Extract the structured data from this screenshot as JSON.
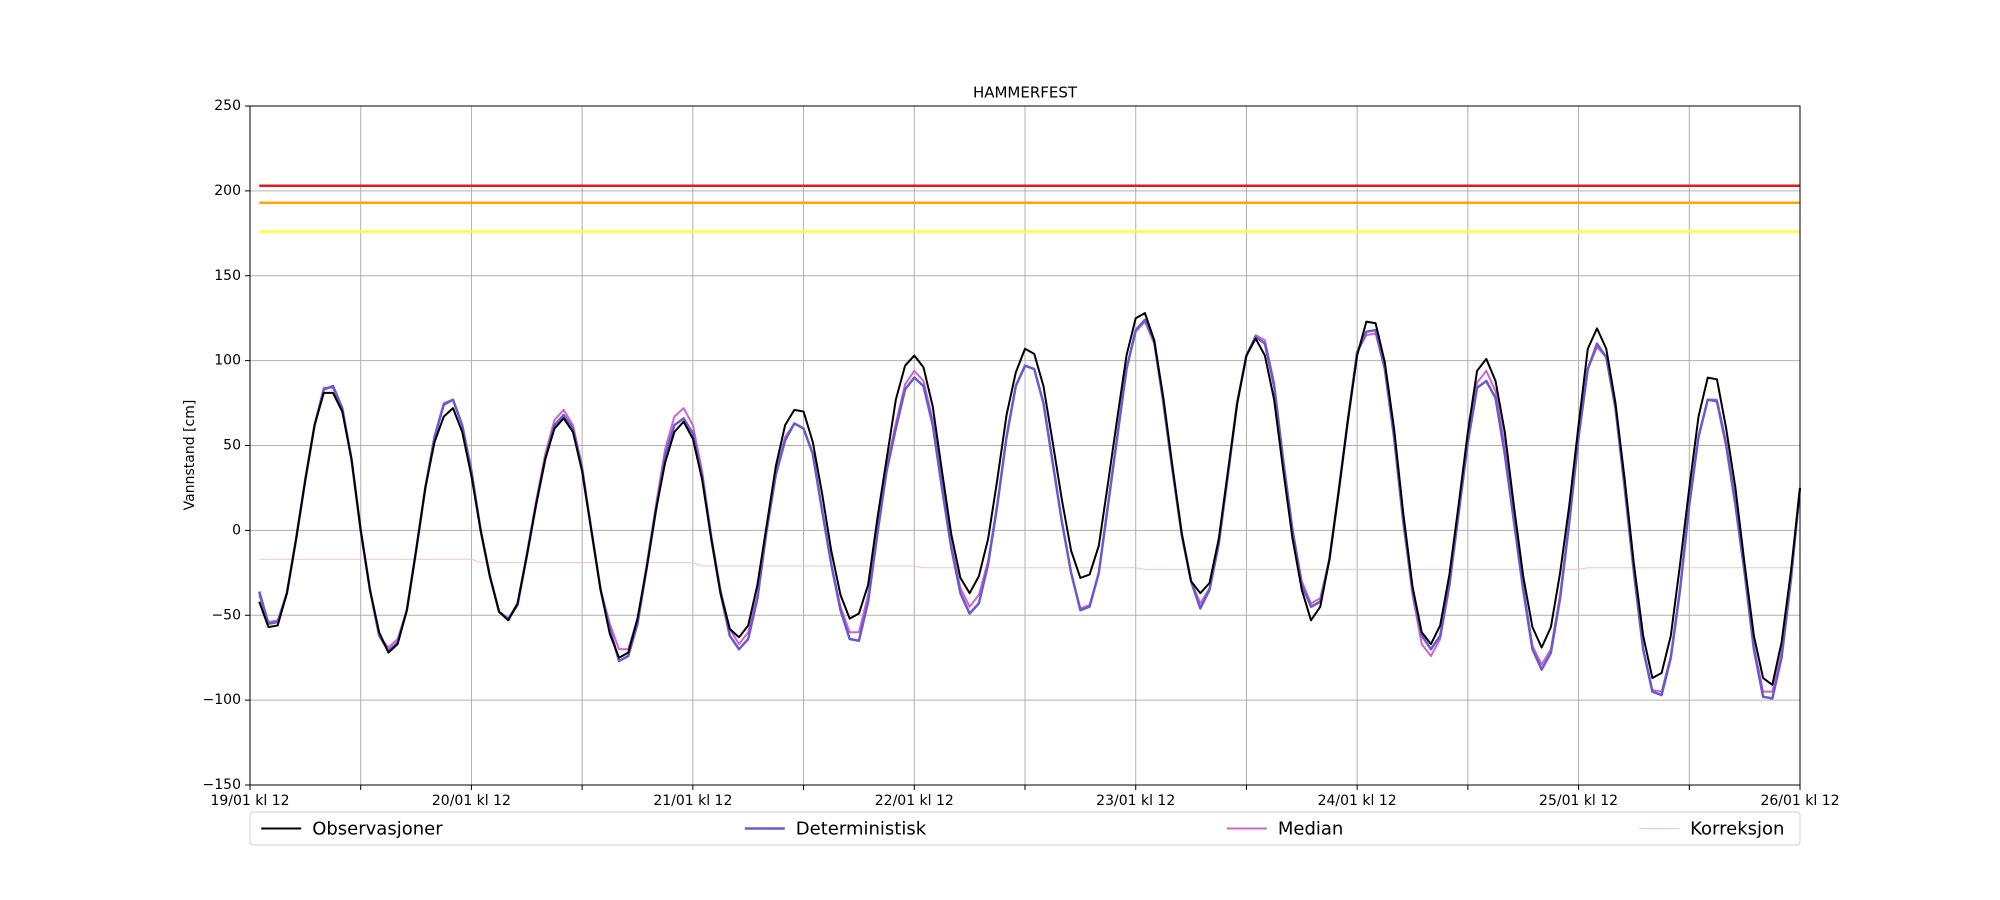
{
  "chart_data": {
    "type": "line",
    "title": "HAMMERFEST",
    "ylabel": "Vannstand [cm]",
    "xlim": [
      0,
      168
    ],
    "ylim": [
      -150,
      250
    ],
    "xticks": [
      {
        "value": 0,
        "label": "19/01 kl 12"
      },
      {
        "value": 24,
        "label": "20/01 kl 12"
      },
      {
        "value": 48,
        "label": "21/01 kl 12"
      },
      {
        "value": 72,
        "label": "22/01 kl 12"
      },
      {
        "value": 96,
        "label": "23/01 kl 12"
      },
      {
        "value": 120,
        "label": "24/01 kl 12"
      },
      {
        "value": 144,
        "label": "25/01 kl 12"
      },
      {
        "value": 168,
        "label": "26/01 kl 12"
      }
    ],
    "xminor": [
      12,
      36,
      60,
      84,
      108,
      132,
      156
    ],
    "yticks": [
      {
        "value": -150,
        "label": "−150"
      },
      {
        "value": -100,
        "label": "−100"
      },
      {
        "value": -50,
        "label": "−50"
      },
      0,
      50,
      100,
      150,
      200,
      250
    ],
    "grid": true,
    "hlines": [
      {
        "value": 203,
        "color": "#e31a1c"
      },
      {
        "value": 193,
        "color": "#ffa500"
      },
      {
        "value": 176,
        "color": "#ffff33"
      }
    ],
    "x": [
      1,
      2,
      3,
      4,
      5,
      6,
      7,
      8,
      9,
      10,
      11,
      12,
      13,
      14,
      15,
      16,
      17,
      18,
      19,
      20,
      21,
      22,
      23,
      24,
      25,
      26,
      27,
      28,
      29,
      30,
      31,
      32,
      33,
      34,
      35,
      36,
      37,
      38,
      39,
      40,
      41,
      42,
      43,
      44,
      45,
      46,
      47,
      48,
      49,
      50,
      51,
      52,
      53,
      54,
      55,
      56,
      57,
      58,
      59,
      60,
      61,
      62,
      63,
      64,
      65,
      66,
      67,
      68,
      69,
      70,
      71,
      72,
      73,
      74,
      75,
      76,
      77,
      78,
      79,
      80,
      81,
      82,
      83,
      84,
      85,
      86,
      87,
      88,
      89,
      90,
      91,
      92,
      93,
      94,
      95,
      96,
      97,
      98,
      99,
      100,
      101,
      102,
      103,
      104,
      105,
      106,
      107,
      108,
      109,
      110,
      111,
      112,
      113,
      114,
      115,
      116,
      117,
      118,
      119,
      120,
      121,
      122,
      123,
      124,
      125,
      126,
      127,
      128,
      129,
      130,
      131,
      132,
      133,
      134,
      135,
      136,
      137,
      138,
      139,
      140,
      141,
      142,
      143,
      144,
      145,
      146,
      147,
      148,
      149,
      150,
      151,
      152,
      153,
      154,
      155,
      156,
      157,
      158,
      159,
      160,
      161,
      162,
      163,
      164,
      165,
      166,
      167,
      168
    ],
    "series": [
      {
        "name": "Observasjoner",
        "color": "#000000",
        "width": 2,
        "values": [
          -42,
          -57,
          -56,
          -37,
          -5,
          30,
          62,
          81,
          81,
          70,
          42,
          0,
          -35,
          -60,
          -72,
          -67,
          -47,
          -12,
          25,
          52,
          67,
          72,
          58,
          32,
          0,
          -27,
          -48,
          -53,
          -43,
          -15,
          15,
          42,
          60,
          66,
          58,
          35,
          0,
          -35,
          -61,
          -75,
          -72,
          -52,
          -22,
          12,
          40,
          58,
          64,
          54,
          30,
          -5,
          -37,
          -58,
          -63,
          -56,
          -32,
          3,
          38,
          62,
          71,
          70,
          52,
          22,
          -12,
          -38,
          -52,
          -49,
          -32,
          7,
          42,
          77,
          97,
          103,
          96,
          73,
          35,
          -2,
          -28,
          -37,
          -27,
          -5,
          30,
          68,
          93,
          107,
          104,
          85,
          52,
          18,
          -12,
          -28,
          -26,
          -9,
          28,
          66,
          103,
          125,
          128,
          112,
          78,
          37,
          -2,
          -30,
          -37,
          -31,
          -5,
          35,
          75,
          103,
          113,
          103,
          77,
          35,
          -5,
          -35,
          -53,
          -45,
          -17,
          23,
          65,
          103,
          123,
          122,
          99,
          60,
          10,
          -33,
          -60,
          -67,
          -56,
          -26,
          15,
          58,
          94,
          101,
          88,
          58,
          14,
          -27,
          -57,
          -69,
          -57,
          -25,
          15,
          62,
          107,
          119,
          107,
          75,
          30,
          -20,
          -62,
          -87,
          -84,
          -62,
          -20,
          25,
          67,
          90,
          89,
          60,
          25,
          -20,
          -62,
          -87,
          -91,
          -66,
          -25,
          25
        ]
      },
      {
        "name": "Deterministisk",
        "color": "#6a5acd",
        "width": 2.5,
        "values": [
          -36,
          -55,
          -54,
          -37,
          -5,
          30,
          62,
          83,
          85,
          72,
          42,
          0,
          -35,
          -62,
          -71,
          -66,
          -47,
          -12,
          25,
          55,
          74,
          77,
          62,
          35,
          0,
          -27,
          -48,
          -52,
          -44,
          -15,
          15,
          42,
          62,
          68,
          60,
          35,
          0,
          -35,
          -58,
          -77,
          -74,
          -55,
          -22,
          12,
          44,
          62,
          66,
          57,
          32,
          -5,
          -37,
          -62,
          -70,
          -64,
          -40,
          0,
          33,
          53,
          63,
          60,
          45,
          12,
          -20,
          -47,
          -64,
          -65,
          -42,
          -2,
          35,
          60,
          83,
          90,
          85,
          62,
          25,
          -10,
          -37,
          -49,
          -43,
          -20,
          15,
          55,
          85,
          97,
          95,
          75,
          40,
          5,
          -25,
          -47,
          -45,
          -25,
          15,
          55,
          95,
          118,
          124,
          112,
          75,
          35,
          -3,
          -30,
          -46,
          -35,
          -8,
          33,
          75,
          103,
          114,
          110,
          85,
          40,
          0,
          -32,
          -45,
          -42,
          -17,
          23,
          65,
          105,
          117,
          118,
          95,
          55,
          5,
          -35,
          -62,
          -70,
          -62,
          -32,
          10,
          52,
          84,
          88,
          78,
          45,
          5,
          -35,
          -70,
          -82,
          -72,
          -40,
          5,
          55,
          95,
          110,
          102,
          72,
          25,
          -25,
          -70,
          -95,
          -97,
          -75,
          -35,
          15,
          55,
          77,
          76,
          50,
          15,
          -25,
          -70,
          -98,
          -99,
          -75,
          -30,
          25
        ]
      },
      {
        "name": "Median",
        "color": "#cc66cc",
        "width": 2,
        "values": [
          -38,
          -54,
          -53,
          -37,
          -5,
          30,
          62,
          84,
          84,
          71,
          42,
          0,
          -35,
          -62,
          -69,
          -64,
          -47,
          -12,
          25,
          55,
          75,
          77,
          62,
          35,
          0,
          -27,
          -48,
          -52,
          -43,
          -14,
          17,
          45,
          65,
          71,
          62,
          38,
          0,
          -35,
          -55,
          -70,
          -70,
          -52,
          -20,
          15,
          48,
          67,
          72,
          62,
          35,
          -3,
          -35,
          -58,
          -67,
          -60,
          -38,
          2,
          35,
          55,
          63,
          60,
          45,
          12,
          -20,
          -45,
          -60,
          -60,
          -38,
          0,
          38,
          63,
          86,
          94,
          88,
          65,
          28,
          -8,
          -34,
          -45,
          -38,
          -18,
          15,
          55,
          85,
          97,
          95,
          75,
          40,
          5,
          -25,
          -46,
          -44,
          -25,
          15,
          55,
          95,
          117,
          123,
          110,
          75,
          35,
          -3,
          -30,
          -43,
          -34,
          -7,
          33,
          75,
          103,
          115,
          112,
          87,
          42,
          0,
          -30,
          -43,
          -40,
          -17,
          23,
          65,
          105,
          115,
          116,
          95,
          55,
          5,
          -38,
          -67,
          -74,
          -64,
          -33,
          10,
          52,
          87,
          94,
          82,
          50,
          8,
          -33,
          -68,
          -79,
          -70,
          -38,
          6,
          55,
          95,
          108,
          102,
          72,
          25,
          -25,
          -70,
          -94,
          -95,
          -74,
          -34,
          15,
          55,
          77,
          77,
          52,
          17,
          -23,
          -68,
          -95,
          -95,
          -72,
          -28,
          25
        ]
      },
      {
        "name": "Korreksjon",
        "color": "#f4c2c8",
        "width": 1,
        "values": [
          -17,
          -17,
          -17,
          -17,
          -17,
          -17,
          -17,
          -17,
          -17,
          -17,
          -17,
          -17,
          -17,
          -17,
          -17,
          -17,
          -17,
          -17,
          -17,
          -17,
          -17,
          -17,
          -17,
          -17,
          -19,
          -19,
          -19,
          -19,
          -19,
          -19,
          -19,
          -19,
          -19,
          -19,
          -19,
          -19,
          -19,
          -19,
          -19,
          -19,
          -19,
          -19,
          -19,
          -19,
          -19,
          -19,
          -19,
          -19,
          -21,
          -21,
          -21,
          -21,
          -21,
          -21,
          -21,
          -21,
          -21,
          -21,
          -21,
          -21,
          -21,
          -21,
          -21,
          -21,
          -21,
          -21,
          -21,
          -21,
          -21,
          -21,
          -21,
          -21,
          -22,
          -22,
          -22,
          -22,
          -22,
          -22,
          -22,
          -22,
          -22,
          -22,
          -22,
          -22,
          -22,
          -22,
          -22,
          -22,
          -22,
          -22,
          -22,
          -22,
          -22,
          -22,
          -22,
          -22,
          -23,
          -23,
          -23,
          -23,
          -23,
          -23,
          -23,
          -23,
          -23,
          -23,
          -23,
          -23,
          -23,
          -23,
          -23,
          -23,
          -23,
          -23,
          -23,
          -23,
          -23,
          -23,
          -23,
          -23,
          -23,
          -23,
          -23,
          -23,
          -23,
          -23,
          -23,
          -23,
          -23,
          -23,
          -23,
          -23,
          -23,
          -23,
          -23,
          -23,
          -23,
          -23,
          -23,
          -23,
          -23,
          -23,
          -23,
          -23,
          -22,
          -22,
          -22,
          -22,
          -22,
          -22,
          -22,
          -22,
          -22,
          -22,
          -22,
          -22,
          -22,
          -22,
          -22,
          -22,
          -22,
          -22,
          -22,
          -22,
          -22,
          -22,
          -22,
          -22
        ]
      }
    ]
  }
}
